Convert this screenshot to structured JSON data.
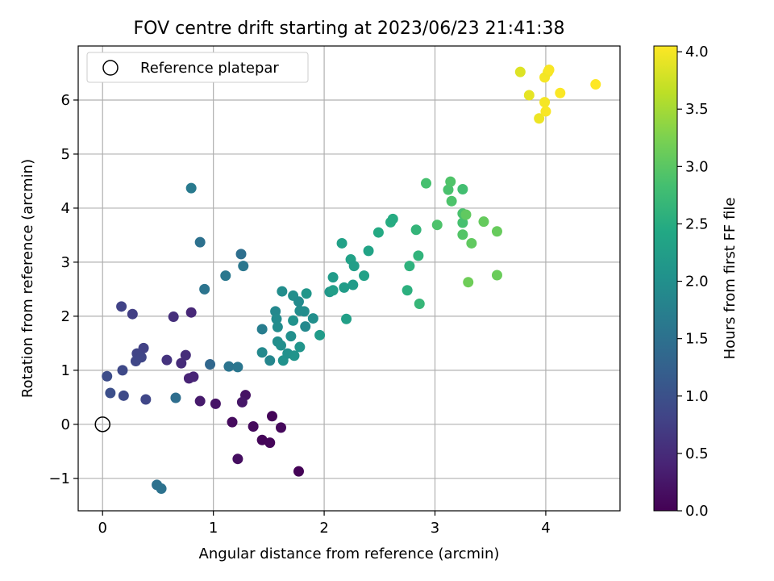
{
  "chart_data": {
    "type": "scatter",
    "title": "FOV centre drift starting at 2023/06/23 21:41:38",
    "xlabel": "Angular distance from reference (arcmin)",
    "ylabel": "Rotation from reference (arcmin)",
    "xlim": [
      -0.22,
      4.67
    ],
    "ylim": [
      -1.6,
      7.0
    ],
    "xticks": [
      "0",
      "1",
      "2",
      "3",
      "4"
    ],
    "xtick_values": [
      0,
      1,
      2,
      3,
      4
    ],
    "yticks": [
      "−1",
      "0",
      "1",
      "2",
      "3",
      "4",
      "5",
      "6"
    ],
    "ytick_values": [
      -1,
      0,
      1,
      2,
      3,
      4,
      5,
      6
    ],
    "grid": true,
    "legend": {
      "placement": "top-left",
      "entries": [
        "Reference platepar"
      ]
    },
    "colormap": "viridis",
    "colorbar": {
      "label": "Hours from first FF file",
      "range": [
        0.0,
        4.05
      ],
      "ticks": [
        "0.0",
        "0.5",
        "1.0",
        "1.5",
        "2.0",
        "2.5",
        "3.0",
        "3.5",
        "4.0"
      ],
      "tick_values": [
        0,
        0.5,
        1.0,
        1.5,
        2.0,
        2.5,
        3.0,
        3.5,
        4.0
      ]
    },
    "reference_point": {
      "x": 0,
      "y": 0
    },
    "points": [
      {
        "x": 1.53,
        "y": 0.15,
        "c": 0.05
      },
      {
        "x": 1.61,
        "y": -0.06,
        "c": 0.08
      },
      {
        "x": 1.36,
        "y": -0.04,
        "c": 0.1
      },
      {
        "x": 1.44,
        "y": -0.29,
        "c": 0.05
      },
      {
        "x": 1.51,
        "y": -0.34,
        "c": 0.06
      },
      {
        "x": 1.77,
        "y": -0.87,
        "c": 0.02
      },
      {
        "x": 1.17,
        "y": 0.04,
        "c": 0.12
      },
      {
        "x": 1.22,
        "y": -0.64,
        "c": 0.15
      },
      {
        "x": 1.29,
        "y": 0.54,
        "c": 0.2
      },
      {
        "x": 1.26,
        "y": 0.41,
        "c": 0.25
      },
      {
        "x": 1.02,
        "y": 0.38,
        "c": 0.22
      },
      {
        "x": 0.88,
        "y": 0.43,
        "c": 0.3
      },
      {
        "x": 0.78,
        "y": 0.85,
        "c": 0.4
      },
      {
        "x": 0.82,
        "y": 0.88,
        "c": 0.42
      },
      {
        "x": 0.71,
        "y": 1.13,
        "c": 0.5
      },
      {
        "x": 0.75,
        "y": 1.28,
        "c": 0.52
      },
      {
        "x": 0.58,
        "y": 1.19,
        "c": 0.6
      },
      {
        "x": 0.64,
        "y": 1.99,
        "c": 0.55
      },
      {
        "x": 0.8,
        "y": 2.07,
        "c": 0.45
      },
      {
        "x": 0.27,
        "y": 2.04,
        "c": 0.75
      },
      {
        "x": 0.17,
        "y": 2.18,
        "c": 0.8
      },
      {
        "x": 0.37,
        "y": 1.41,
        "c": 0.78
      },
      {
        "x": 0.31,
        "y": 1.31,
        "c": 0.82
      },
      {
        "x": 0.35,
        "y": 1.24,
        "c": 0.84
      },
      {
        "x": 0.3,
        "y": 1.17,
        "c": 0.86
      },
      {
        "x": 0.18,
        "y": 1.0,
        "c": 0.88
      },
      {
        "x": 0.04,
        "y": 0.89,
        "c": 0.95
      },
      {
        "x": 0.07,
        "y": 0.58,
        "c": 0.98
      },
      {
        "x": 0.19,
        "y": 0.53,
        "c": 0.9
      },
      {
        "x": 0.39,
        "y": 0.46,
        "c": 0.85
      },
      {
        "x": 0.66,
        "y": 0.49,
        "c": 1.45
      },
      {
        "x": 0.49,
        "y": -1.12,
        "c": 1.5
      },
      {
        "x": 0.53,
        "y": -1.19,
        "c": 1.52
      },
      {
        "x": 0.97,
        "y": 1.11,
        "c": 1.35
      },
      {
        "x": 1.14,
        "y": 1.07,
        "c": 1.55
      },
      {
        "x": 1.22,
        "y": 1.06,
        "c": 1.58
      },
      {
        "x": 0.92,
        "y": 2.5,
        "c": 1.55
      },
      {
        "x": 0.88,
        "y": 3.37,
        "c": 1.5
      },
      {
        "x": 0.8,
        "y": 4.37,
        "c": 1.65
      },
      {
        "x": 1.11,
        "y": 2.75,
        "c": 1.62
      },
      {
        "x": 1.25,
        "y": 3.15,
        "c": 1.48
      },
      {
        "x": 1.27,
        "y": 2.93,
        "c": 1.6
      },
      {
        "x": 1.51,
        "y": 1.18,
        "c": 1.85
      },
      {
        "x": 1.44,
        "y": 1.33,
        "c": 1.9
      },
      {
        "x": 1.44,
        "y": 1.76,
        "c": 1.7
      },
      {
        "x": 1.56,
        "y": 2.09,
        "c": 1.88
      },
      {
        "x": 1.57,
        "y": 1.95,
        "c": 1.92
      },
      {
        "x": 1.58,
        "y": 1.8,
        "c": 1.95
      },
      {
        "x": 1.58,
        "y": 1.53,
        "c": 1.98
      },
      {
        "x": 1.61,
        "y": 1.46,
        "c": 2.0
      },
      {
        "x": 1.63,
        "y": 1.18,
        "c": 2.05
      },
      {
        "x": 1.67,
        "y": 1.31,
        "c": 2.02
      },
      {
        "x": 1.7,
        "y": 1.63,
        "c": 2.0
      },
      {
        "x": 1.72,
        "y": 1.92,
        "c": 2.05
      },
      {
        "x": 1.73,
        "y": 1.27,
        "c": 2.08
      },
      {
        "x": 1.78,
        "y": 1.43,
        "c": 2.1
      },
      {
        "x": 1.62,
        "y": 2.46,
        "c": 1.96
      },
      {
        "x": 1.72,
        "y": 2.38,
        "c": 1.98
      },
      {
        "x": 1.77,
        "y": 2.27,
        "c": 1.92
      },
      {
        "x": 1.78,
        "y": 2.1,
        "c": 1.94
      },
      {
        "x": 1.82,
        "y": 2.09,
        "c": 1.95
      },
      {
        "x": 1.83,
        "y": 1.81,
        "c": 1.9
      },
      {
        "x": 1.84,
        "y": 2.42,
        "c": 2.12
      },
      {
        "x": 1.9,
        "y": 1.96,
        "c": 2.0
      },
      {
        "x": 1.96,
        "y": 1.65,
        "c": 2.2
      },
      {
        "x": 2.05,
        "y": 2.45,
        "c": 2.15
      },
      {
        "x": 2.08,
        "y": 2.48,
        "c": 2.25
      },
      {
        "x": 2.08,
        "y": 2.72,
        "c": 2.2
      },
      {
        "x": 2.16,
        "y": 3.35,
        "c": 2.3
      },
      {
        "x": 2.18,
        "y": 2.53,
        "c": 2.22
      },
      {
        "x": 2.2,
        "y": 1.95,
        "c": 2.28
      },
      {
        "x": 2.24,
        "y": 3.05,
        "c": 2.3
      },
      {
        "x": 2.26,
        "y": 2.58,
        "c": 2.2
      },
      {
        "x": 2.27,
        "y": 2.93,
        "c": 2.25
      },
      {
        "x": 2.36,
        "y": 2.75,
        "c": 2.3
      },
      {
        "x": 2.4,
        "y": 3.21,
        "c": 2.35
      },
      {
        "x": 2.49,
        "y": 3.55,
        "c": 2.45
      },
      {
        "x": 2.6,
        "y": 3.74,
        "c": 2.5
      },
      {
        "x": 2.62,
        "y": 3.8,
        "c": 2.48
      },
      {
        "x": 2.75,
        "y": 2.48,
        "c": 2.55
      },
      {
        "x": 2.77,
        "y": 2.93,
        "c": 2.58
      },
      {
        "x": 2.83,
        "y": 3.6,
        "c": 2.65
      },
      {
        "x": 2.85,
        "y": 3.12,
        "c": 2.62
      },
      {
        "x": 2.86,
        "y": 2.23,
        "c": 2.68
      },
      {
        "x": 2.92,
        "y": 4.46,
        "c": 2.85
      },
      {
        "x": 3.02,
        "y": 3.69,
        "c": 2.9
      },
      {
        "x": 3.12,
        "y": 4.34,
        "c": 2.88
      },
      {
        "x": 3.14,
        "y": 4.49,
        "c": 2.92
      },
      {
        "x": 3.15,
        "y": 4.13,
        "c": 2.9
      },
      {
        "x": 3.25,
        "y": 3.73,
        "c": 2.85
      },
      {
        "x": 3.25,
        "y": 3.9,
        "c": 2.88
      },
      {
        "x": 3.25,
        "y": 4.35,
        "c": 2.82
      },
      {
        "x": 3.28,
        "y": 3.88,
        "c": 3.05
      },
      {
        "x": 3.25,
        "y": 3.51,
        "c": 2.95
      },
      {
        "x": 3.33,
        "y": 3.35,
        "c": 3.05
      },
      {
        "x": 3.3,
        "y": 2.63,
        "c": 3.15
      },
      {
        "x": 3.44,
        "y": 3.75,
        "c": 3.08
      },
      {
        "x": 3.56,
        "y": 3.57,
        "c": 3.1
      },
      {
        "x": 3.56,
        "y": 2.76,
        "c": 3.12
      },
      {
        "x": 3.77,
        "y": 6.52,
        "c": 3.85
      },
      {
        "x": 3.85,
        "y": 6.09,
        "c": 3.9
      },
      {
        "x": 3.94,
        "y": 5.66,
        "c": 3.95
      },
      {
        "x": 3.99,
        "y": 6.42,
        "c": 4.0
      },
      {
        "x": 4.02,
        "y": 6.52,
        "c": 3.98
      },
      {
        "x": 4.03,
        "y": 6.56,
        "c": 4.02
      },
      {
        "x": 3.99,
        "y": 5.96,
        "c": 4.0
      },
      {
        "x": 4.0,
        "y": 5.79,
        "c": 4.02
      },
      {
        "x": 4.13,
        "y": 6.13,
        "c": 4.03
      },
      {
        "x": 4.45,
        "y": 6.29,
        "c": 4.05
      }
    ]
  }
}
